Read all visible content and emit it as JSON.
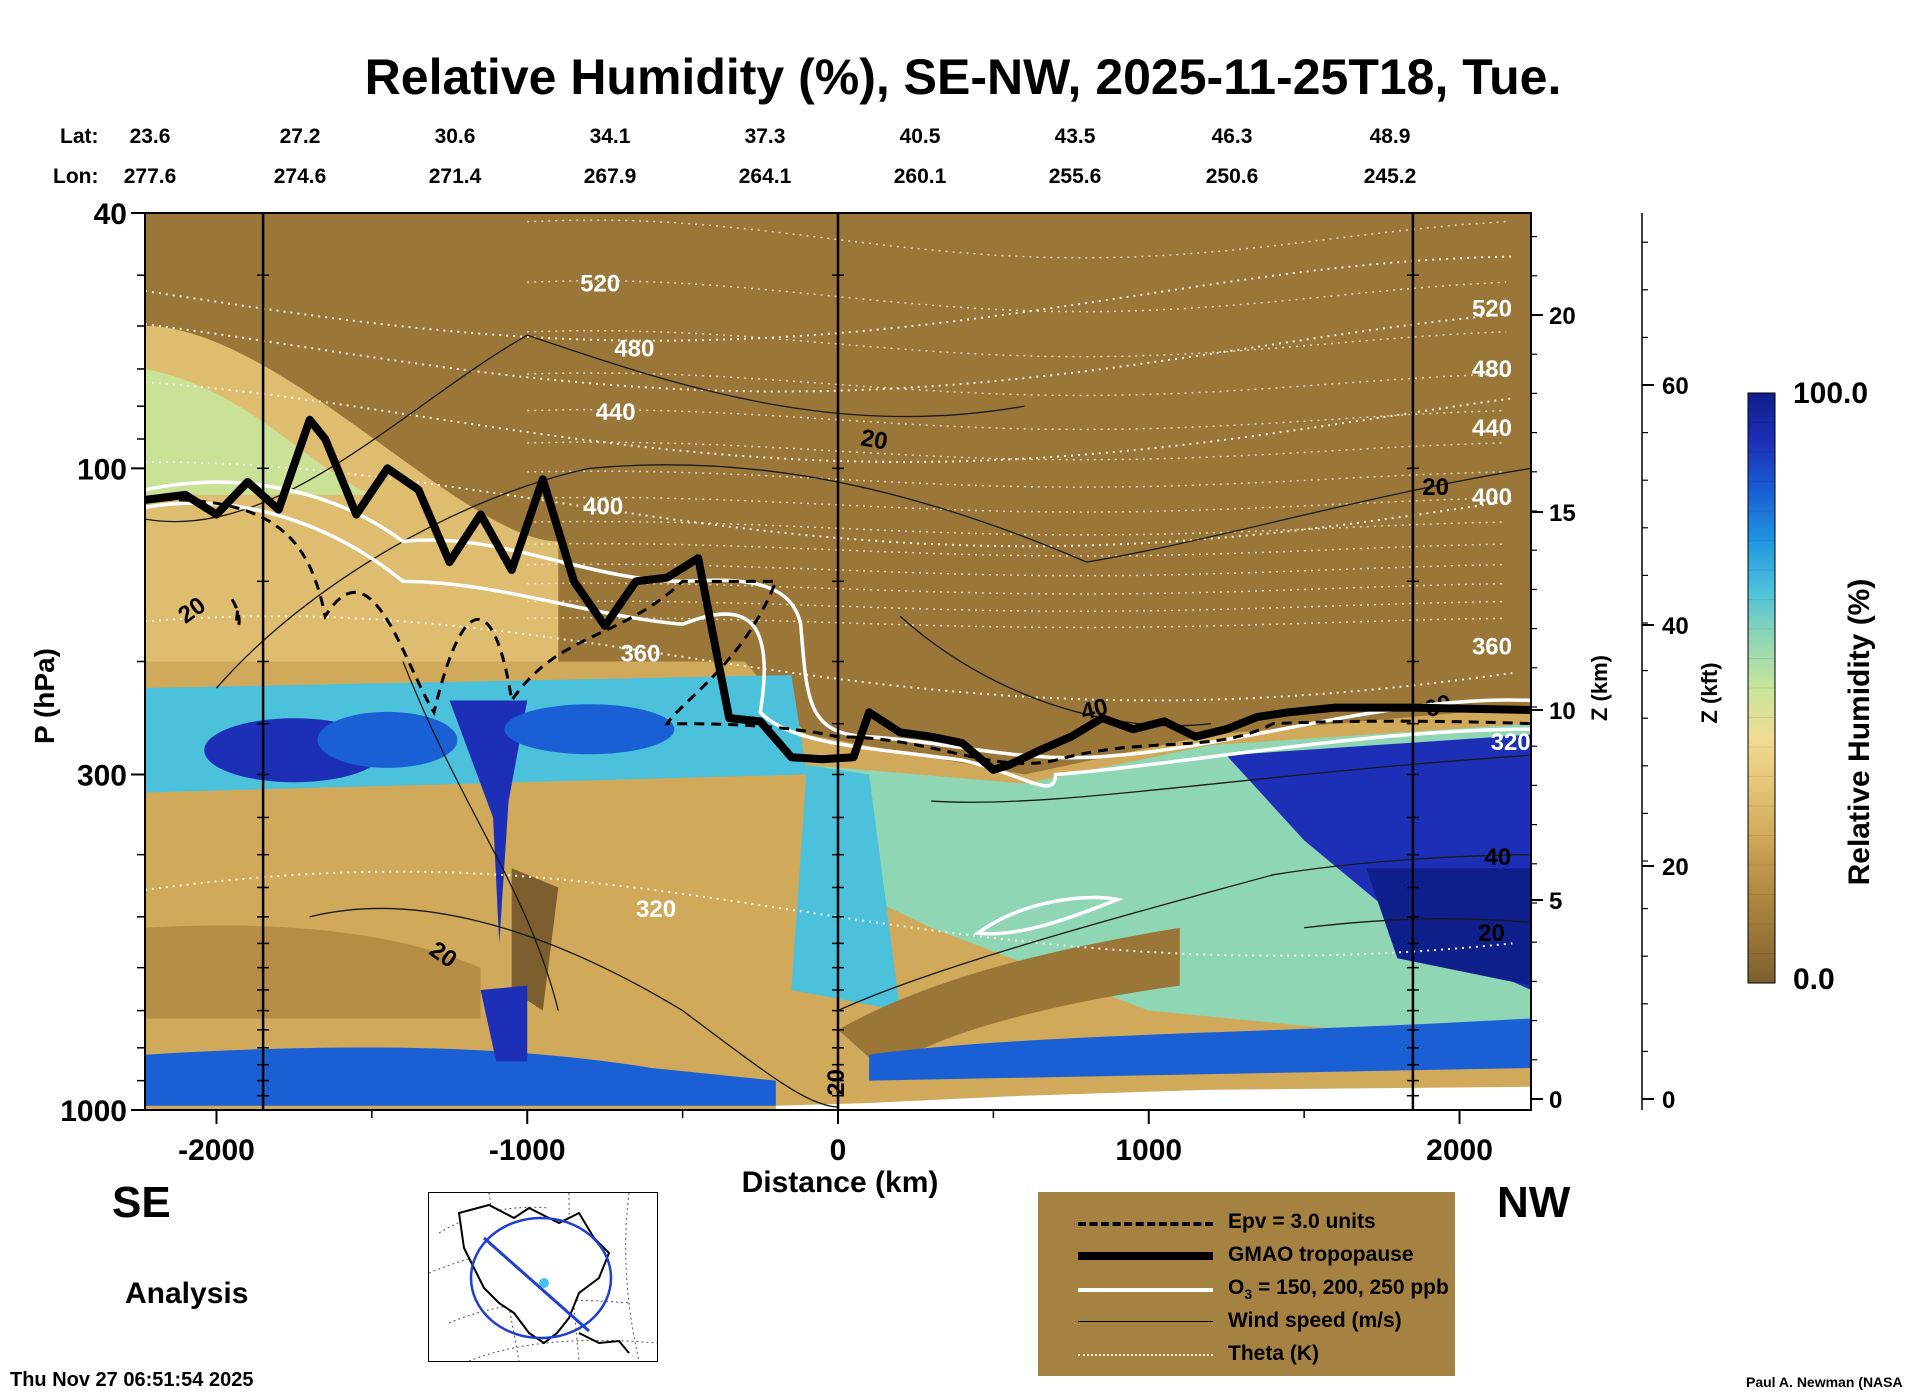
{
  "title": "Relative Humidity (%), SE-NW, 2025-11-25T18, Tue.",
  "coords": {
    "lat_label": "Lat:",
    "lon_label": "Lon:",
    "lat": [
      "23.6",
      "27.2",
      "30.6",
      "34.1",
      "37.3",
      "40.5",
      "43.5",
      "46.3",
      "48.9"
    ],
    "lon": [
      "277.6",
      "274.6",
      "271.4",
      "267.9",
      "264.1",
      "260.1",
      "255.6",
      "250.6",
      "245.2"
    ]
  },
  "chart_data": {
    "type": "heatmap",
    "title": "Relative Humidity (%), SE-NW, 2025-11-25T18, Tue.",
    "xlabel": "Distance (km)",
    "ylabel": "P (hPa)",
    "xlim": [
      -2230,
      2230
    ],
    "ylim": [
      1000,
      40
    ],
    "y_scale": "log",
    "x_ticks": [
      -2000,
      -1000,
      0,
      1000,
      2000
    ],
    "x_tick_labels": [
      "-2000",
      "-1000",
      "0",
      "1000",
      "2000"
    ],
    "y_ticks": [
      40,
      100,
      300,
      1000
    ],
    "y_tick_labels": [
      "40",
      "100",
      "300",
      "1000"
    ],
    "z_km_ticks": [
      0,
      5,
      10,
      15,
      20
    ],
    "z_km_tick_labels": [
      "0",
      "5",
      "10",
      "15",
      "20"
    ],
    "z_km_label": "Z (km)",
    "z_kft_ticks": [
      0,
      20,
      40,
      60
    ],
    "z_kft_tick_labels": [
      "0",
      "20",
      "40",
      "60"
    ],
    "z_kft_label": "Z (kft)",
    "colorbar": {
      "label": "Relative Humidity (%)",
      "min": 0.0,
      "max": 100.0,
      "min_label": "0.0",
      "max_label": "100.0",
      "colors": [
        "#7d5f2f",
        "#9a7638",
        "#b58d44",
        "#d1a95a",
        "#e5c477",
        "#f0db95",
        "#c7e59a",
        "#8fd6b4",
        "#4cc1dc",
        "#1f95e0",
        "#1a5fd4",
        "#1c2fb6",
        "#0f1f8c"
      ]
    },
    "vertical_lines_x": [
      -1850,
      0,
      1850
    ],
    "series": [
      {
        "name": "GMAO tropopause",
        "style": "thick-black",
        "x": [
          -2230,
          -2100,
          -2000,
          -1900,
          -1800,
          -1700,
          -1650,
          -1550,
          -1450,
          -1350,
          -1250,
          -1150,
          -1050,
          -950,
          -850,
          -750,
          -650,
          -550,
          -450,
          -350,
          -250,
          -150,
          -50,
          50,
          100,
          200,
          300,
          400,
          500,
          550,
          650,
          750,
          850,
          950,
          1050,
          1150,
          1250,
          1350,
          1450,
          1600,
          1850,
          2230
        ],
        "y": [
          112,
          110,
          118,
          105,
          116,
          84,
          90,
          118,
          100,
          108,
          140,
          118,
          144,
          104,
          150,
          176,
          150,
          148,
          138,
          245,
          248,
          282,
          284,
          282,
          240,
          258,
          262,
          268,
          295,
          290,
          275,
          262,
          245,
          255,
          248,
          262,
          255,
          244,
          240,
          236,
          236,
          238
        ]
      },
      {
        "name": "Theta (K)",
        "style": "dotted-white",
        "levels": [
          320,
          360,
          400,
          440,
          480,
          520
        ],
        "level_labels": [
          "320",
          "360",
          "400",
          "440",
          "480",
          "520"
        ]
      },
      {
        "name": "Wind speed (m/s)",
        "style": "thin-black",
        "level_labels": [
          "20",
          "20",
          "20",
          "20",
          "20",
          "40",
          "40",
          "60",
          "20"
        ]
      },
      {
        "name": "O3 = 150, 200, 250 ppb",
        "style": "white"
      },
      {
        "name": "Epv = 3.0 units",
        "style": "dashed-black"
      }
    ]
  },
  "direction": {
    "left": "SE",
    "right": "NW"
  },
  "analysis_label": "Analysis",
  "timestamp": "Thu Nov 27 06:51:54 2025",
  "credit": "Paul A. Newman (NASA",
  "legend": {
    "epv": "Epv = 3.0 units",
    "tropopause": "GMAO tropopause",
    "ozone_prefix": "O",
    "ozone_sub": "3",
    "ozone_suffix": " = 150, 200, 250 ppb",
    "wind": "Wind speed (m/s)",
    "theta": "Theta (K)"
  },
  "inset_map": {
    "icon": "north-america-section-map"
  }
}
